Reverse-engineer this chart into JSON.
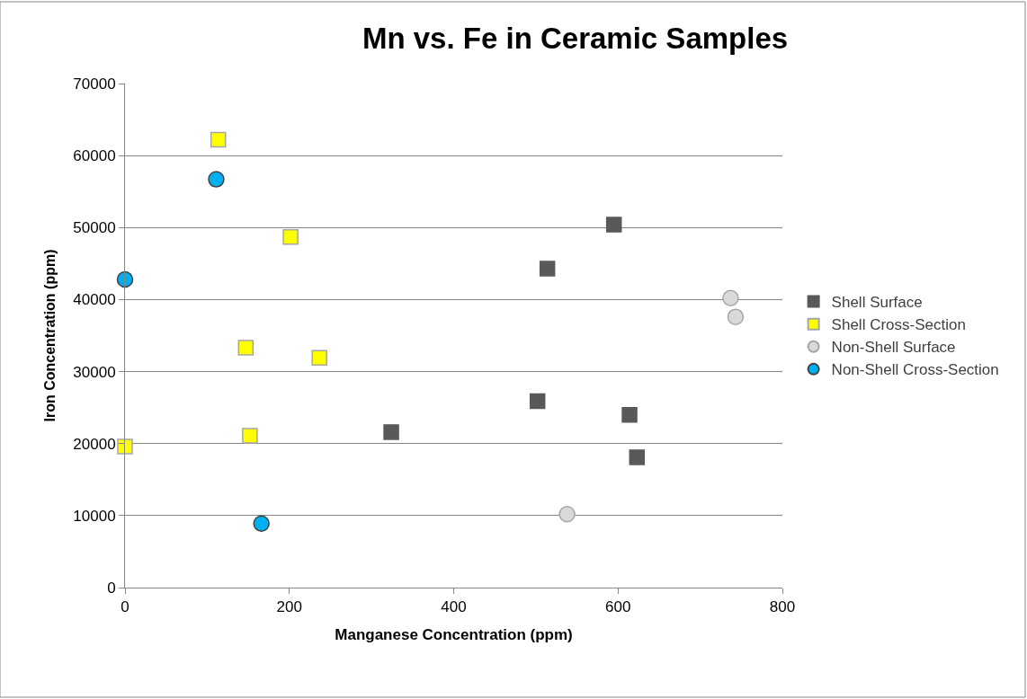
{
  "chart_data": {
    "type": "scatter",
    "title": "Mn vs. Fe in Ceramic Samples",
    "xlabel": "Manganese Concentration (ppm)",
    "ylabel": "Iron Concentration (ppm)",
    "xlim": [
      0,
      800
    ],
    "xticks": [
      0,
      200,
      400,
      600,
      800
    ],
    "ylim": [
      0,
      70000
    ],
    "yticks": [
      0,
      10000,
      20000,
      30000,
      40000,
      50000,
      60000,
      70000
    ],
    "grid": "y",
    "legend": "right",
    "series": [
      {
        "name": "Shell Surface",
        "color": "#595959",
        "marker": "square",
        "x": [
          595,
          514,
          502,
          614,
          623,
          324
        ],
        "values": [
          50400,
          44300,
          25900,
          24000,
          18100,
          21600
        ]
      },
      {
        "name": "Shell Cross-Section",
        "color": "#ffff00",
        "marker": "square",
        "x": [
          113.5,
          201.5,
          147,
          236.6,
          152,
          0
        ],
        "values": [
          62200,
          48700,
          33300,
          31900,
          21100,
          19600
        ]
      },
      {
        "name": "Non-Shell Surface",
        "color": "#d9d9d9",
        "marker": "circle",
        "x": [
          737,
          743,
          538
        ],
        "values": [
          40200,
          37600,
          10200
        ]
      },
      {
        "name": "Non-Shell Cross-Section",
        "color": "#00b0f0",
        "marker": "circle",
        "x": [
          111,
          0,
          166
        ],
        "values": [
          56700,
          42800,
          8900
        ]
      }
    ]
  }
}
